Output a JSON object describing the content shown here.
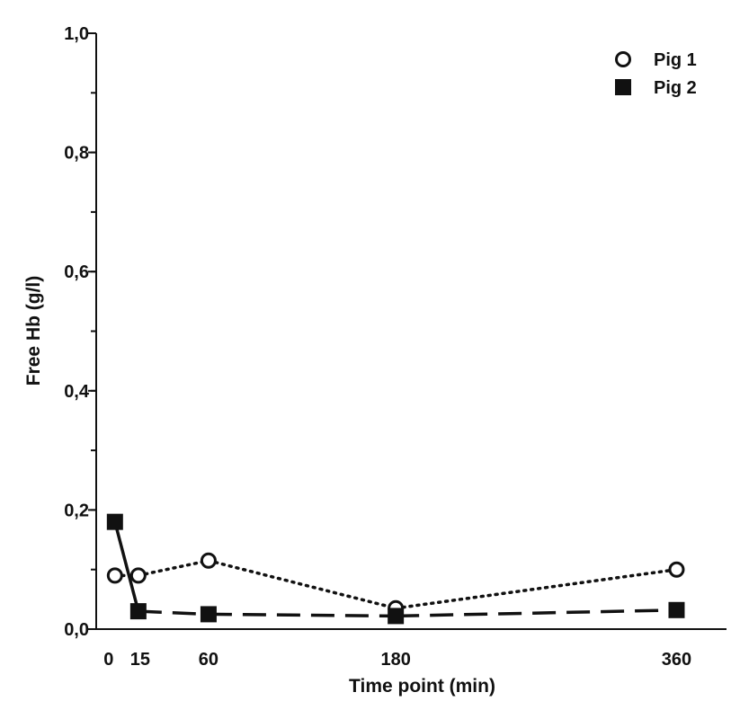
{
  "chart_data": {
    "type": "line",
    "title": "",
    "xlabel": "Time point (min)",
    "ylabel": "Free Hb (g/l)",
    "x_ticks": [
      0,
      15,
      60,
      180,
      360
    ],
    "x_tick_labels": [
      "0",
      "15",
      "60",
      "180",
      "360"
    ],
    "y_ticks": [
      0,
      0.2,
      0.4,
      0.6,
      0.8,
      1.0
    ],
    "y_tick_labels": [
      "0,0",
      "0,2",
      "0,4",
      "0,6",
      "0,8",
      "1,0"
    ],
    "ylim": [
      0,
      1.0
    ],
    "grid": false,
    "legend_position": "top-right",
    "series": [
      {
        "name": "Pig 1",
        "marker": "open-circle",
        "line_style": "dotted",
        "color": "#111111",
        "x": [
          0,
          15,
          60,
          180,
          360
        ],
        "y": [
          0.09,
          0.09,
          0.115,
          0.035,
          0.1
        ]
      },
      {
        "name": "Pig 2",
        "marker": "filled-square",
        "line_style": "dashed",
        "color": "#111111",
        "x": [
          0,
          15,
          60,
          180,
          360
        ],
        "y": [
          0.18,
          0.03,
          0.025,
          0.022,
          0.032
        ]
      }
    ]
  }
}
